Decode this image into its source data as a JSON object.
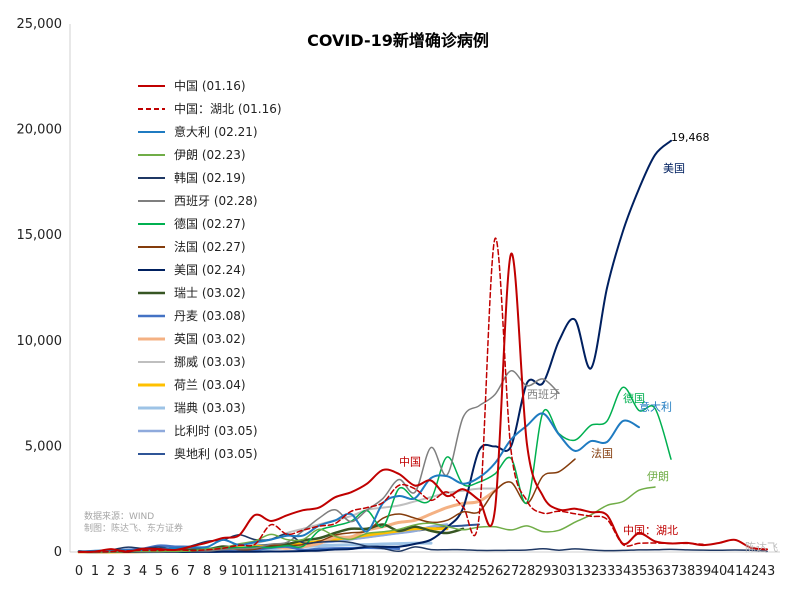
{
  "chart_data": {
    "type": "line",
    "title": "COVID-19新增确诊病例",
    "xlabel": "",
    "ylabel": "",
    "xlim": [
      0,
      43
    ],
    "ylim": [
      0,
      25000
    ],
    "yticks": [
      0,
      5000,
      10000,
      15000,
      20000,
      25000
    ],
    "ytick_labels": [
      "0",
      "5,000",
      "10,000",
      "15,000",
      "20,000",
      "25,000"
    ],
    "xticks": [
      0,
      1,
      2,
      3,
      4,
      5,
      6,
      7,
      8,
      9,
      10,
      11,
      12,
      13,
      14,
      15,
      16,
      17,
      18,
      19,
      20,
      21,
      22,
      23,
      24,
      25,
      26,
      27,
      28,
      29,
      30,
      31,
      32,
      33,
      34,
      35,
      36,
      37,
      38,
      39,
      40,
      41,
      42,
      43
    ],
    "grid": false,
    "legend_position": "top-left",
    "source_note": "数据来源：WIND",
    "author_note": "制图：陈达飞、东方证券",
    "watermark": "陈达飞",
    "series": [
      {
        "name": "中国 (01.16)",
        "color": "#c00000",
        "dash": "solid",
        "width": 2,
        "values": [
          4,
          17,
          136,
          19,
          151,
          140,
          97,
          259,
          441,
          665,
          787,
          1753,
          1466,
          1740,
          1980,
          2101,
          2590,
          2829,
          3235,
          3887,
          3694,
          3143,
          3385,
          2652,
          2973,
          2467,
          2015,
          14108,
          5090,
          2641,
          2008,
          2048,
          1888,
          1749,
          394,
          889,
          508,
          406,
          433,
          327,
          427,
          573,
          202,
          125
        ]
      },
      {
        "name": "中国：湖北 (01.16)",
        "color": "#c00000",
        "dash": "dashed",
        "width": 1.5,
        "values": [
          0,
          4,
          17,
          59,
          77,
          72,
          105,
          69,
          105,
          180,
          323,
          371,
          1291,
          840,
          1032,
          1220,
          1347,
          1921,
          2103,
          2345,
          3156,
          2987,
          2447,
          2841,
          2147,
          1638,
          14840,
          4823,
          2420,
          1843,
          1933,
          1807,
          1693,
          1549,
          349,
          411,
          426,
          401,
          409,
          367,
          null,
          null,
          null,
          null
        ]
      },
      {
        "name": "意大利 (02.21)",
        "color": "#1f7bc1",
        "dash": "solid",
        "width": 2,
        "values": [
          17,
          58,
          78,
          72,
          94,
          147,
          185,
          234,
          239,
          573,
          335,
          466,
          587,
          769,
          778,
          1247,
          1492,
          1797,
          977,
          2313,
          2651,
          2547,
          3497,
          3590,
          3233,
          3526,
          4207,
          5322,
          5986,
          6557,
          5560,
          4789,
          5249,
          5210,
          6203,
          5909,
          null,
          null,
          null,
          null,
          null,
          null,
          null,
          null
        ]
      },
      {
        "name": "伊朗 (02.23)",
        "color": "#70ad47",
        "dash": "solid",
        "width": 1.5,
        "values": [
          0,
          15,
          4,
          18,
          33,
          43,
          34,
          50,
          143,
          205,
          385,
          523,
          835,
          586,
          591,
          1076,
          743,
          595,
          881,
          958,
          1075,
          1289,
          1365,
          1209,
          1053,
          1178,
          1192,
          1046,
          1237,
          966,
          1028,
          1411,
          1762,
          2206,
          2389,
          2926,
          3076,
          null,
          null,
          null,
          null,
          null,
          null,
          null
        ]
      },
      {
        "name": "韩国 (02.19)",
        "color": "#1f3864",
        "dash": "solid",
        "width": 1.5,
        "values": [
          20,
          53,
          100,
          229,
          169,
          231,
          144,
          284,
          505,
          571,
          813,
          586,
          599,
          851,
          435,
          467,
          505,
          448,
          273,
          164,
          35,
          242,
          114,
          110,
          107,
          76,
          74,
          84,
          93,
          152,
          87,
          147,
          98,
          64,
          76,
          100,
          104,
          125,
          101,
          89,
          86,
          94,
          81,
          27
        ]
      },
      {
        "name": "西班牙 (02.28)",
        "color": "#7f7f7f",
        "dash": "solid",
        "width": 1.5,
        "values": [
          0,
          0,
          1,
          13,
          6,
          12,
          15,
          62,
          45,
          112,
          151,
          184,
          373,
          460,
          1000,
          1600,
          2000,
          1438,
          1987,
          2538,
          3431,
          2833,
          4946,
          3646,
          6368,
          6922,
          7457,
          8578,
          7871,
          8189,
          7516,
          null,
          null,
          null,
          null,
          null,
          null,
          null,
          null,
          null,
          null,
          null,
          null,
          null
        ]
      },
      {
        "name": "德国 (02.27)",
        "color": "#00b050",
        "dash": "solid",
        "width": 1.5,
        "values": [
          0,
          0,
          0,
          47,
          9,
          6,
          20,
          48,
          159,
          179,
          199,
          238,
          210,
          300,
          272,
          1010,
          1238,
          1452,
          1960,
          1200,
          3000,
          2500,
          2500,
          4500,
          3207,
          3311,
          3700,
          4438,
          2342,
          6615,
          5600,
          5300,
          6000,
          6200,
          7800,
          6700,
          6800,
          4400,
          null,
          null,
          null,
          null,
          null,
          null
        ]
      },
      {
        "name": "法国 (02.27)",
        "color": "#843c0c",
        "dash": "solid",
        "width": 1.5,
        "values": [
          0,
          0,
          0,
          0,
          20,
          24,
          92,
          41,
          100,
          203,
          112,
          130,
          314,
          300,
          350,
          500,
          800,
          914,
          1000,
          1600,
          1800,
          1600,
          1404,
          1500,
          1900,
          1900,
          2900,
          3300,
          2300,
          3600,
          3800,
          4400,
          null,
          null,
          null,
          null,
          null,
          null,
          null,
          null,
          null,
          null,
          null,
          null
        ]
      },
      {
        "name": "美国 (02.24)",
        "color": "#002060",
        "dash": "solid",
        "width": 2,
        "values": [
          0,
          0,
          0,
          0,
          0,
          3,
          2,
          4,
          5,
          11,
          14,
          16,
          22,
          29,
          48,
          68,
          120,
          141,
          250,
          248,
          250,
          384,
          584,
          1170,
          2069,
          4800,
          5000,
          5000,
          8000,
          8000,
          10000,
          11000,
          8700,
          12500,
          15200,
          17200,
          18800,
          19468,
          null,
          null,
          null,
          null,
          null,
          null
        ]
      },
      {
        "name": "瑞士 (03.02)",
        "color": "#375623",
        "dash": "solid",
        "width": 2.5,
        "values": [
          18,
          6,
          12,
          31,
          15,
          100,
          120,
          99,
          120,
          260,
          170,
          229,
          245,
          365,
          552,
          654,
          900,
          1100,
          1100,
          1300,
          1000,
          1200,
          1000,
          900,
          1100,
          null,
          null,
          null,
          null,
          null,
          null,
          null,
          null,
          null,
          null,
          null,
          null,
          null,
          null,
          null,
          null,
          null,
          null,
          null
        ]
      },
      {
        "name": "丹麦 (03.08)",
        "color": "#4472c4",
        "dash": "solid",
        "width": 2.5,
        "values": [
          31,
          5,
          67,
          106,
          151,
          300,
          250,
          230,
          32,
          36,
          33,
          100,
          200,
          250,
          100,
          150,
          170,
          178,
          200,
          180,
          150,
          null,
          null,
          null,
          null,
          null,
          null,
          null,
          null,
          null,
          null,
          null,
          null,
          null,
          null,
          null,
          null,
          null,
          null,
          null,
          null,
          null,
          null,
          null
        ]
      },
      {
        "name": "英国 (03.02)",
        "color": "#f4b183",
        "dash": "solid",
        "width": 3,
        "values": [
          4,
          10,
          17,
          7,
          30,
          34,
          46,
          70,
          115,
          42,
          62,
          152,
          246,
          175,
          250,
          400,
          700,
          714,
          1035,
          1200,
          1400,
          1500,
          1800,
          2100,
          2300,
          2400,
          2900,
          null,
          null,
          null,
          null,
          null,
          null,
          null,
          null,
          null,
          null,
          null,
          null,
          null,
          null,
          null,
          null,
          null
        ]
      },
      {
        "name": "挪威 (03.03)",
        "color": "#bfbfbf",
        "dash": "solid",
        "width": 2,
        "values": [
          0,
          7,
          15,
          0,
          28,
          36,
          33,
          22,
          49,
          84,
          160,
          400,
          600,
          900,
          1100,
          1300,
          1500,
          1700,
          2000,
          2100,
          2200,
          2400,
          2600,
          2800,
          2900,
          3000,
          3000,
          null,
          null,
          null,
          null,
          null,
          null,
          null,
          null,
          null,
          null,
          null,
          null,
          null,
          null,
          null,
          null,
          null
        ]
      },
      {
        "name": "荷兰 (03.04)",
        "color": "#ffc000",
        "dash": "solid",
        "width": 3,
        "values": [
          0,
          0,
          0,
          10,
          20,
          40,
          60,
          80,
          100,
          140,
          200,
          250,
          300,
          350,
          400,
          500,
          600,
          700,
          800,
          900,
          1000,
          1100,
          1100,
          1100,
          null,
          null,
          null,
          null,
          null,
          null,
          null,
          null,
          null,
          null,
          null,
          null,
          null,
          null,
          null,
          null,
          null,
          null,
          null,
          null
        ]
      },
      {
        "name": "瑞典 (03.03)",
        "color": "#9dc3e6",
        "dash": "solid",
        "width": 3,
        "values": [
          0,
          3,
          5,
          7,
          10,
          20,
          30,
          40,
          50,
          60,
          80,
          100,
          150,
          200,
          250,
          300,
          320,
          340,
          350,
          380,
          400,
          420,
          420,
          null,
          null,
          null,
          null,
          null,
          null,
          null,
          null,
          null,
          null,
          null,
          null,
          null,
          null,
          null,
          null,
          null,
          null,
          null,
          null,
          null
        ]
      },
      {
        "name": "比利时 (03.05)",
        "color": "#8faadc",
        "dash": "solid",
        "width": 2.5,
        "values": [
          0,
          10,
          30,
          50,
          70,
          90,
          110,
          130,
          150,
          170,
          200,
          250,
          300,
          350,
          400,
          450,
          500,
          600,
          700,
          800,
          900,
          1000,
          1200,
          1300,
          null,
          null,
          null,
          null,
          null,
          null,
          null,
          null,
          null,
          null,
          null,
          null,
          null,
          null,
          null,
          null,
          null,
          null,
          null,
          null
        ]
      },
      {
        "name": "奥地利 (03.05)",
        "color": "#2f5597",
        "dash": "solid",
        "width": 2,
        "values": [
          0,
          5,
          10,
          20,
          40,
          60,
          80,
          100,
          150,
          200,
          250,
          300,
          350,
          400,
          450,
          500,
          550,
          600,
          700,
          800,
          900,
          1000,
          1100,
          1200,
          1250,
          1300,
          null,
          null,
          null,
          null,
          null,
          null,
          null,
          null,
          null,
          null,
          null,
          null,
          null,
          null,
          null,
          null,
          null,
          null
        ]
      }
    ],
    "annotations": [
      {
        "text": "19,468",
        "x": 37,
        "y": 19468,
        "color": "#000000"
      },
      {
        "text": "美国",
        "x": 36.5,
        "y": 18000,
        "color": "#002060"
      },
      {
        "text": "意大利",
        "x": 35,
        "y": 6700,
        "color": "#1f7bc1"
      },
      {
        "text": "伊朗",
        "x": 35.5,
        "y": 3400,
        "color": "#70ad47"
      },
      {
        "text": "西班牙",
        "x": 28,
        "y": 7300,
        "color": "#7f7f7f"
      },
      {
        "text": "德国",
        "x": 34,
        "y": 7100,
        "color": "#00b050"
      },
      {
        "text": "法国",
        "x": 32,
        "y": 4500,
        "color": "#843c0c"
      },
      {
        "text": "中国",
        "x": 20,
        "y": 4100,
        "color": "#c00000"
      },
      {
        "text": "中国：湖北",
        "x": 34,
        "y": 850,
        "color": "#c00000"
      }
    ]
  }
}
